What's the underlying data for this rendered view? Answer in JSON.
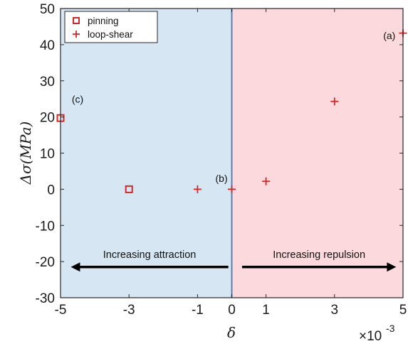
{
  "chart_data": {
    "type": "scatter",
    "xlabel": "δ",
    "ylabel": "Δσ(MPa)",
    "x_multiplier_label": "×10",
    "x_multiplier_exp": "-3",
    "xlim": [
      -5,
      5
    ],
    "ylim": [
      -30,
      50
    ],
    "x_ticks": [
      -5,
      -3,
      -1,
      0,
      1,
      3,
      5
    ],
    "y_ticks": [
      -30,
      -20,
      -10,
      0,
      10,
      20,
      30,
      40,
      50
    ],
    "grid": false,
    "legend_position": "top-left",
    "series": [
      {
        "name": "pinning",
        "marker": "square",
        "color": "#d62728",
        "points": [
          {
            "x": -5,
            "y": 19.7
          },
          {
            "x": -3,
            "y": 0
          }
        ]
      },
      {
        "name": "loop-shear",
        "marker": "plus",
        "color": "#d62728",
        "points": [
          {
            "x": -1,
            "y": 0
          },
          {
            "x": 0,
            "y": 0
          },
          {
            "x": 1,
            "y": 2.2
          },
          {
            "x": 3,
            "y": 24.3
          },
          {
            "x": 5,
            "y": 43.2
          }
        ]
      }
    ],
    "regions": [
      {
        "name": "attraction",
        "x_range": [
          -5,
          0
        ],
        "color": "#d6e6f2"
      },
      {
        "name": "repulsion",
        "x_range": [
          0,
          5
        ],
        "color": "#fcd9dc"
      }
    ],
    "annotations": [
      {
        "text": "(a)",
        "x": 4.6,
        "y": 41.5
      },
      {
        "text": "(b)",
        "x": -0.3,
        "y": 2
      },
      {
        "text": "(c)",
        "x": -4.5,
        "y": 24
      }
    ],
    "arrows": [
      {
        "label": "Increasing attraction",
        "from_x": -0.1,
        "to_x": -4.7,
        "y": -21.5
      },
      {
        "label": "Increasing repulsion",
        "from_x": 0.3,
        "to_x": 4.8,
        "y": -21.5
      }
    ]
  }
}
